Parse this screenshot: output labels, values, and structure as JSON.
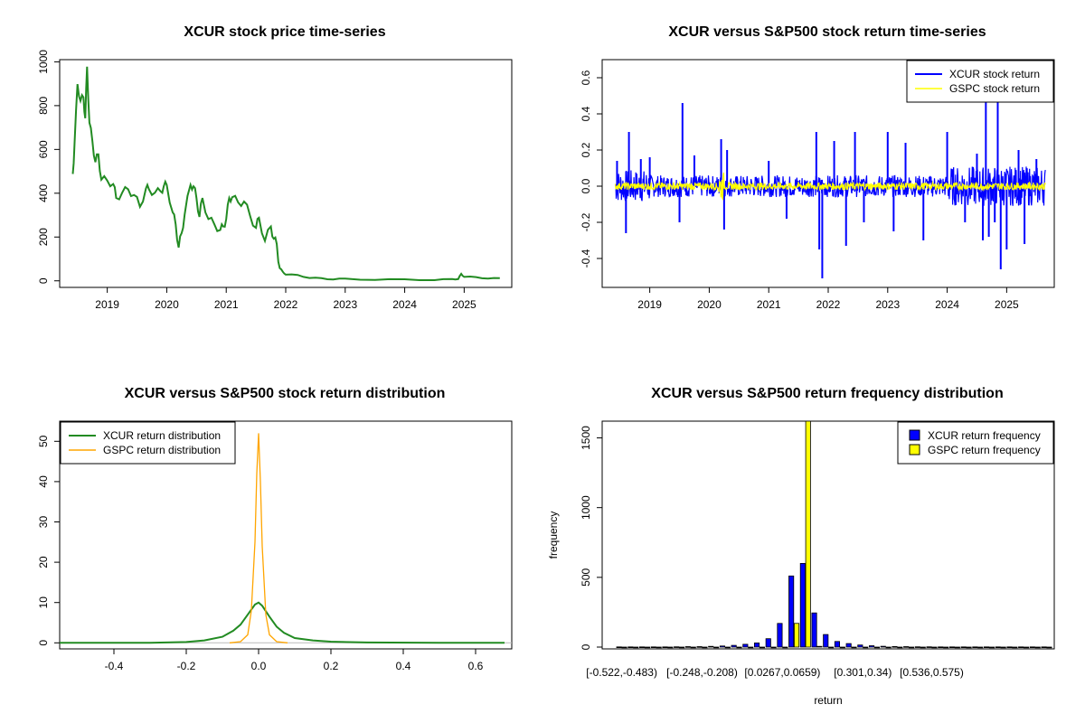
{
  "chart_data": [
    {
      "type": "line",
      "title": "XCUR stock price time-series",
      "xlabel": "",
      "ylabel": "",
      "xlim": [
        2018.2,
        2025.8
      ],
      "ylim": [
        -30,
        1010
      ],
      "x_ticks": [
        "2019",
        "2020",
        "2021",
        "2022",
        "2023",
        "2024",
        "2025"
      ],
      "y_ticks": [
        "0",
        "200",
        "400",
        "600",
        "800",
        "1000"
      ],
      "line_color": "#228B22",
      "series": [
        {
          "name": "XCUR price",
          "x": [
            2018.42,
            2018.45,
            2018.5,
            2018.55,
            2018.6,
            2018.63,
            2018.66,
            2018.7,
            2018.75,
            2018.8,
            2018.85,
            2018.9,
            2019.0,
            2019.1,
            2019.15,
            2019.25,
            2019.35,
            2019.45,
            2019.55,
            2019.65,
            2019.7,
            2019.8,
            2019.9,
            2019.95,
            2020.0,
            2020.1,
            2020.15,
            2020.2,
            2020.25,
            2020.3,
            2020.4,
            2020.45,
            2020.5,
            2020.55,
            2020.6,
            2020.7,
            2020.8,
            2020.9,
            2020.95,
            2021.0,
            2021.05,
            2021.1,
            2021.2,
            2021.3,
            2021.4,
            2021.5,
            2021.55,
            2021.65,
            2021.75,
            2021.8,
            2021.85,
            2021.9,
            2021.95,
            2022.0,
            2022.2,
            2022.4,
            2022.6,
            2022.8,
            2023.0,
            2023.5,
            2024.0,
            2024.5,
            2024.8,
            2024.9,
            2024.95,
            2025.0,
            2025.2,
            2025.4,
            2025.6
          ],
          "values": [
            470,
            640,
            880,
            840,
            820,
            760,
            960,
            740,
            620,
            560,
            560,
            480,
            440,
            460,
            360,
            420,
            400,
            410,
            320,
            440,
            400,
            420,
            390,
            450,
            420,
            330,
            240,
            170,
            200,
            320,
            420,
            450,
            360,
            310,
            360,
            300,
            240,
            250,
            230,
            300,
            360,
            400,
            340,
            380,
            280,
            260,
            270,
            200,
            230,
            210,
            150,
            60,
            40,
            30,
            25,
            15,
            10,
            8,
            8,
            6,
            5,
            5,
            6,
            10,
            30,
            20,
            15,
            12,
            10
          ]
        }
      ]
    },
    {
      "type": "line",
      "title": "XCUR versus S&P500 stock return time-series",
      "xlim": [
        2018.2,
        2025.8
      ],
      "ylim": [
        -0.56,
        0.7
      ],
      "x_ticks": [
        "2019",
        "2020",
        "2021",
        "2022",
        "2023",
        "2024",
        "2025"
      ],
      "y_ticks": [
        "-0.4",
        "-0.2",
        "0.0",
        "0.2",
        "0.4",
        "0.6"
      ],
      "legend": [
        {
          "label": "XCUR stock return",
          "color": "#0000FF"
        },
        {
          "label": "GSPC stock return",
          "color": "#FFFF00"
        }
      ],
      "legend_position": "top-right",
      "series": [
        {
          "name": "XCUR stock return",
          "color": "#0000FF",
          "spikes_x": [
            2018.45,
            2018.6,
            2018.65,
            2018.85,
            2019.0,
            2019.5,
            2019.55,
            2019.75,
            2020.2,
            2020.25,
            2020.3,
            2021.0,
            2021.3,
            2021.8,
            2021.85,
            2021.9,
            2022.1,
            2022.3,
            2022.45,
            2022.6,
            2023.0,
            2023.1,
            2023.3,
            2023.6,
            2024.0,
            2024.3,
            2024.5,
            2024.6,
            2024.65,
            2024.7,
            2024.8,
            2024.85,
            2024.9,
            2025.0,
            2025.2,
            2025.3,
            2025.5
          ],
          "spikes_y": [
            0.14,
            -0.26,
            0.3,
            0.15,
            0.16,
            -0.2,
            0.46,
            0.17,
            0.26,
            -0.24,
            0.2,
            0.14,
            -0.18,
            0.3,
            -0.35,
            -0.51,
            0.25,
            -0.33,
            0.3,
            -0.2,
            0.3,
            -0.25,
            0.24,
            -0.3,
            0.3,
            -0.2,
            0.18,
            -0.3,
            0.47,
            -0.28,
            -0.2,
            0.47,
            -0.46,
            -0.35,
            0.2,
            -0.32,
            0.15
          ]
        },
        {
          "name": "GSPC stock return",
          "color": "#FFFF00",
          "amplitude": 0.02,
          "covid_x": 2020.2,
          "covid_amp": 0.08
        }
      ]
    },
    {
      "type": "line",
      "title": "XCUR versus S&P500 stock return distribution",
      "xlim": [
        -0.55,
        0.7
      ],
      "ylim": [
        -1.5,
        55
      ],
      "x_ticks": [
        "-0.4",
        "-0.2",
        "0.0",
        "0.2",
        "0.4",
        "0.6"
      ],
      "y_ticks": [
        "0",
        "10",
        "20",
        "30",
        "40",
        "50"
      ],
      "legend": [
        {
          "label": "XCUR return distribution",
          "color": "#228B22"
        },
        {
          "label": "GSPC return distribution",
          "color": "#FFA500"
        }
      ],
      "legend_position": "top-left",
      "series": [
        {
          "name": "XCUR return distribution",
          "color": "#228B22",
          "x": [
            -0.55,
            -0.3,
            -0.2,
            -0.15,
            -0.1,
            -0.07,
            -0.05,
            -0.03,
            -0.01,
            0.0,
            0.01,
            0.03,
            0.05,
            0.07,
            0.1,
            0.15,
            0.2,
            0.3,
            0.5,
            0.68
          ],
          "values": [
            0,
            0,
            0.2,
            0.6,
            1.5,
            3,
            4.5,
            7,
            9.5,
            10,
            9.2,
            6.5,
            4,
            2.5,
            1.2,
            0.6,
            0.3,
            0.1,
            0,
            0
          ]
        },
        {
          "name": "GSPC return distribution",
          "color": "#FFA500",
          "x": [
            -0.08,
            -0.05,
            -0.03,
            -0.02,
            -0.01,
            -0.005,
            0.0,
            0.005,
            0.01,
            0.02,
            0.03,
            0.05,
            0.08
          ],
          "values": [
            0,
            0.3,
            2,
            8,
            25,
            42,
            52,
            40,
            24,
            7,
            2,
            0.3,
            0
          ]
        }
      ]
    },
    {
      "type": "bar",
      "title": "XCUR versus S&P500 return frequency distribution",
      "xlabel": "return",
      "ylabel": "frequency",
      "ylim": [
        0,
        1620
      ],
      "y_ticks": [
        "0",
        "500",
        "1000",
        "1500"
      ],
      "category_ticks": [
        "[-0.522,-0.483)",
        "[-0.248,-0.208)",
        "[0.0267,0.0659)",
        "[0.301,0.34)",
        "[0.536,0.575)"
      ],
      "category_tick_index": [
        0,
        7,
        14,
        21,
        27
      ],
      "legend": [
        {
          "label": "XCUR return frequency",
          "color": "#0000FF"
        },
        {
          "label": "GSPC return frequency",
          "color": "#FFFF00"
        }
      ],
      "legend_position": "top-right",
      "series": [
        {
          "name": "XCUR return frequency",
          "color": "#0000FF",
          "values": [
            1,
            1,
            1,
            1,
            1,
            2,
            3,
            3,
            5,
            8,
            12,
            20,
            30,
            60,
            170,
            510,
            600,
            245,
            90,
            40,
            25,
            15,
            10,
            6,
            4,
            3,
            2,
            2,
            1,
            1,
            1,
            1,
            1,
            1,
            1,
            1,
            1,
            1
          ]
        },
        {
          "name": "GSPC return frequency",
          "color": "#FFFF00",
          "values": [
            0,
            0,
            0,
            0,
            0,
            0,
            0,
            0,
            0,
            0,
            0,
            0,
            0,
            0,
            0,
            170,
            1620,
            5,
            0,
            0,
            0,
            0,
            0,
            0,
            0,
            0,
            0,
            0,
            0,
            0,
            0,
            0,
            0,
            0,
            0,
            0,
            0,
            0
          ]
        }
      ]
    }
  ]
}
